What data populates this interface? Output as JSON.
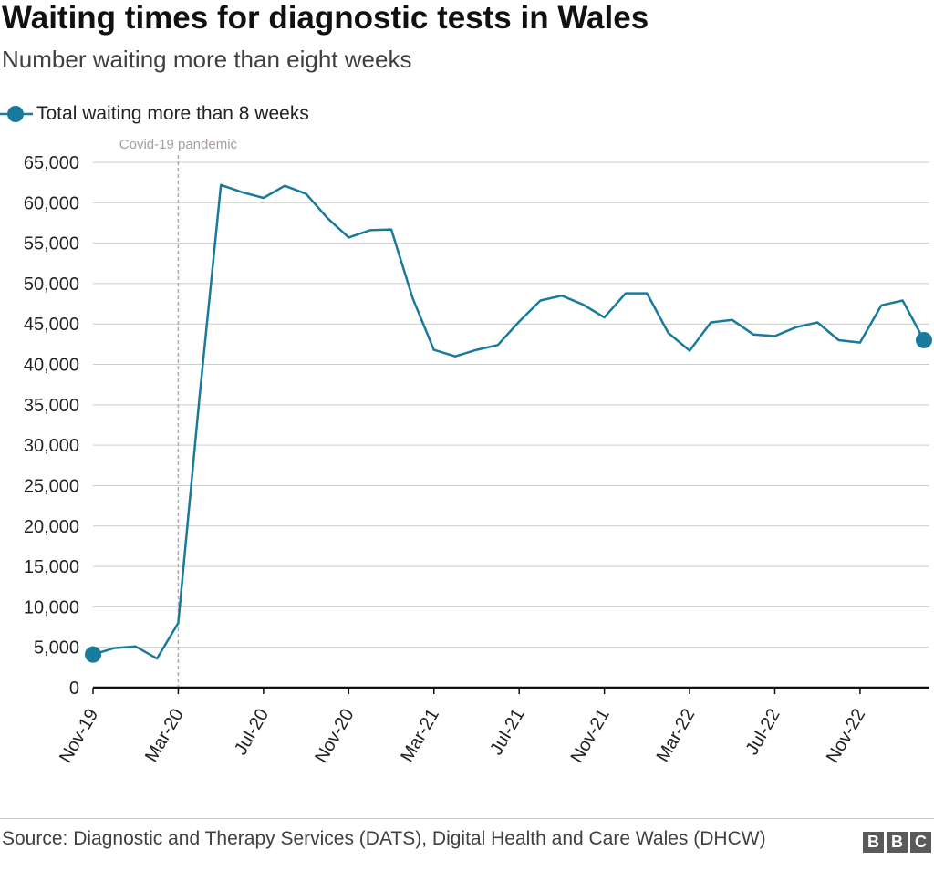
{
  "header": {
    "title": "Waiting times for diagnostic tests in Wales",
    "subtitle": "Number waiting more than eight weeks"
  },
  "footer": {
    "source": "Source: Diagnostic and Therapy Services (DATS), Digital Health and Care Wales (DHCW)",
    "logo_letters": [
      "B",
      "B",
      "C"
    ]
  },
  "colors": {
    "series": "#1a7a9c",
    "grid": "#cccccc",
    "axis": "#111111",
    "annotation_line": "#b8a8ad"
  },
  "chart_data": {
    "type": "line",
    "title": "Waiting times for diagnostic tests in Wales",
    "subtitle": "Number waiting more than eight weeks",
    "xlabel": "",
    "ylabel": "",
    "ylim": [
      0,
      65000
    ],
    "yticks": [
      0,
      5000,
      10000,
      15000,
      20000,
      25000,
      30000,
      35000,
      40000,
      45000,
      50000,
      55000,
      60000,
      65000
    ],
    "ytick_labels": [
      "0",
      "5,000",
      "10,000",
      "15,000",
      "20,000",
      "25,000",
      "30,000",
      "35,000",
      "40,000",
      "45,000",
      "50,000",
      "55,000",
      "60,000",
      "65,000"
    ],
    "xtick_labels": [
      "Nov-19",
      "Mar-20",
      "Jul-20",
      "Nov-20",
      "Mar-21",
      "Jul-21",
      "Nov-21",
      "Mar-22",
      "Jul-22",
      "Nov-22"
    ],
    "xtick_index": [
      0,
      4,
      8,
      12,
      16,
      20,
      24,
      28,
      32,
      36
    ],
    "grid": true,
    "legend_position": "top-left",
    "annotations": [
      {
        "label": "Covid-19 pandemic",
        "at_index": 4
      }
    ],
    "categories": [
      "Nov-19",
      "Dec-19",
      "Jan-20",
      "Feb-20",
      "Mar-20",
      "Apr-20",
      "May-20",
      "Jun-20",
      "Jul-20",
      "Aug-20",
      "Sep-20",
      "Oct-20",
      "Nov-20",
      "Dec-20",
      "Jan-21",
      "Feb-21",
      "Mar-21",
      "Apr-21",
      "May-21",
      "Jun-21",
      "Jul-21",
      "Aug-21",
      "Sep-21",
      "Oct-21",
      "Nov-21",
      "Dec-21",
      "Jan-22",
      "Feb-22",
      "Mar-22",
      "Apr-22",
      "May-22",
      "Jun-22",
      "Jul-22",
      "Aug-22",
      "Sep-22",
      "Oct-22",
      "Nov-22",
      "Dec-22",
      "Jan-23",
      "Feb-23"
    ],
    "series": [
      {
        "name": "Total waiting more than 8 weeks",
        "values": [
          4100,
          4900,
          5100,
          3600,
          8000,
          36000,
          62200,
          61300,
          60600,
          62100,
          61100,
          58100,
          55700,
          56600,
          56700,
          48200,
          41800,
          41000,
          41800,
          42400,
          45300,
          47900,
          48500,
          47400,
          45800,
          48800,
          48800,
          43900,
          41700,
          45200,
          45500,
          43700,
          43500,
          44600,
          45200,
          43000,
          42700,
          47300,
          47900,
          43000
        ]
      }
    ]
  }
}
